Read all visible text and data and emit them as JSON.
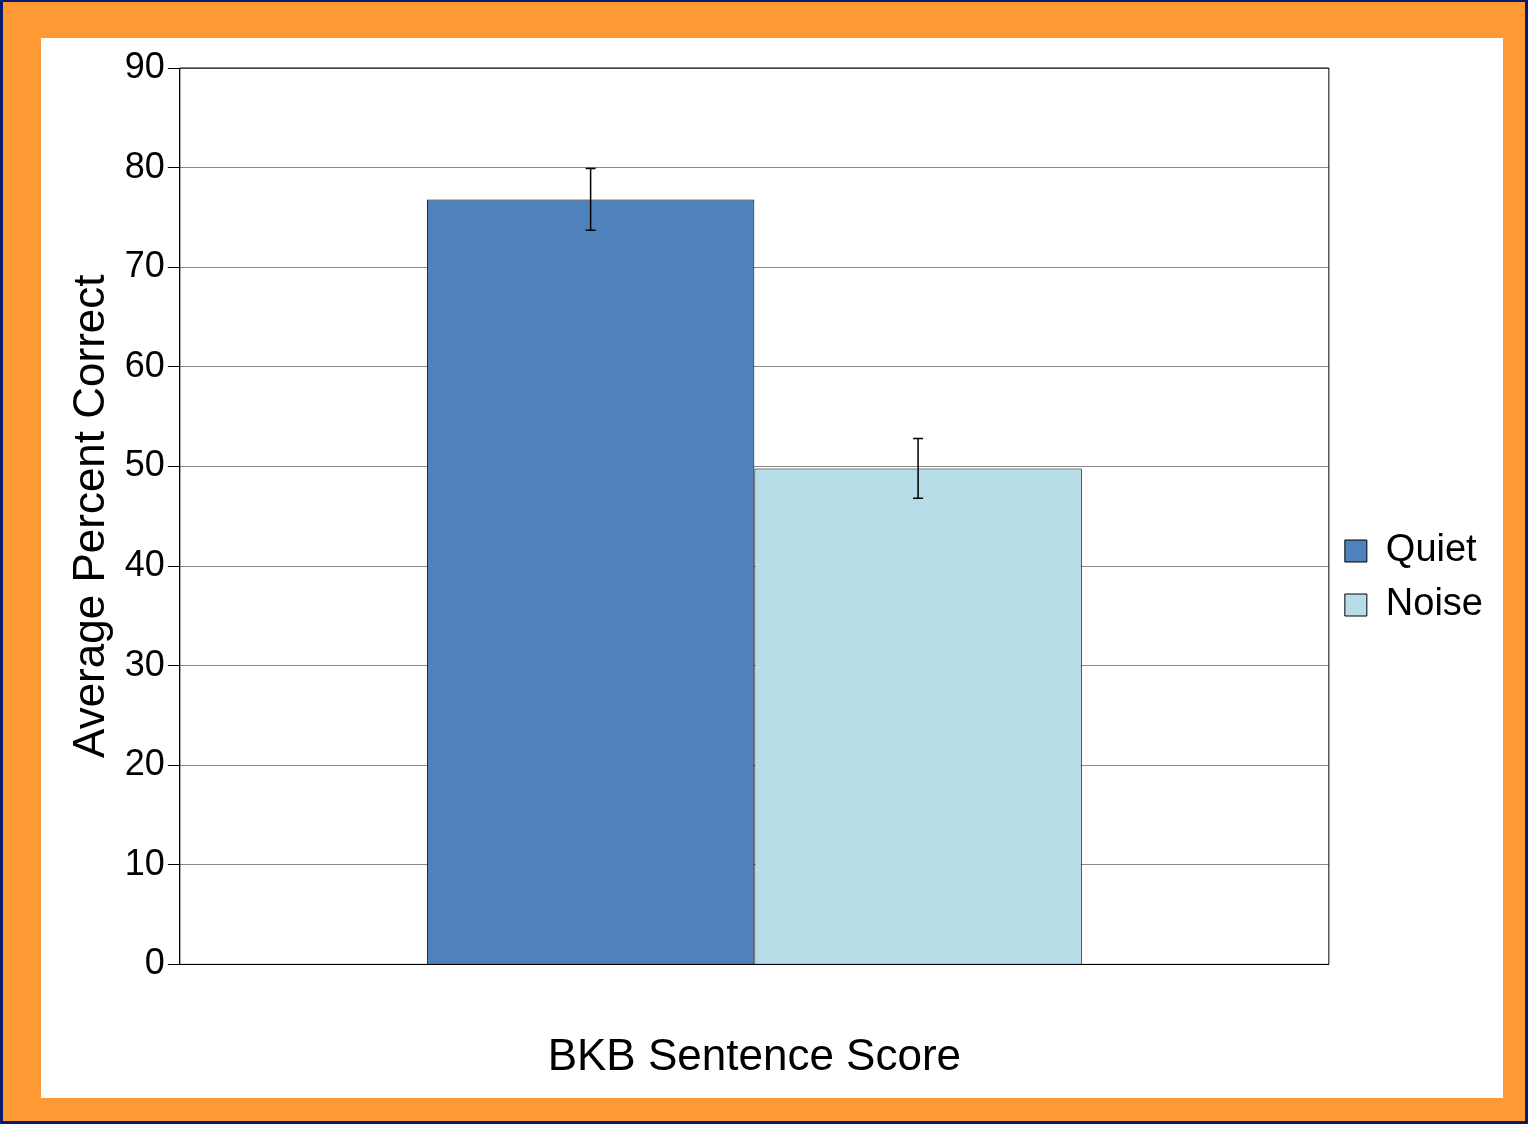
{
  "chart_data": {
    "type": "bar",
    "xlabel": "BKB Sentence Score",
    "ylabel": "Average Percent Correct",
    "categories": [
      null
    ],
    "series": [
      {
        "name": "Quiet",
        "color": "#4f81bd",
        "values": [
          76.8
        ],
        "errors": [
          3.1
        ]
      },
      {
        "name": "Noise",
        "color": "#b7dde8",
        "values": [
          49.8
        ],
        "errors": [
          3
        ]
      }
    ],
    "ylim": [
      0,
      90
    ],
    "yticks": [
      0,
      10,
      20,
      30,
      40,
      50,
      60,
      70,
      80,
      90
    ],
    "grid": "y",
    "legend": "right"
  }
}
